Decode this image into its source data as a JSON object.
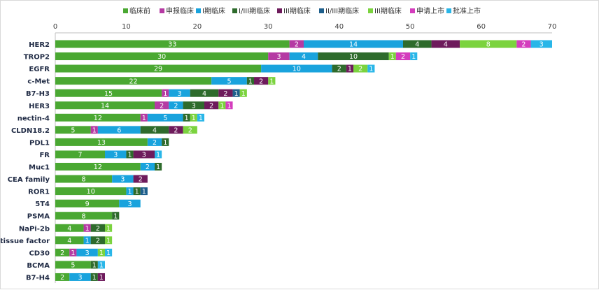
{
  "chart_data": {
    "type": "bar",
    "orientation": "horizontal",
    "stacked": true,
    "title": "",
    "xlabel": "",
    "ylabel": "",
    "xlim": [
      0,
      70
    ],
    "xticks": [
      0,
      10,
      20,
      30,
      40,
      50,
      60,
      70
    ],
    "grid": false,
    "legend_position": "top",
    "categories": [
      "HER2",
      "TROP2",
      "EGFR",
      "c-Met",
      "B7-H3",
      "HER3",
      "nectin-4",
      "CLDN18.2",
      "PDL1",
      "FR",
      "Muc1",
      "CEA family",
      "ROR1",
      "5T4",
      "PSMA",
      "NaPi-2b",
      "tissue factor",
      "CD30",
      "BCMA",
      "B7-H4"
    ],
    "series": [
      {
        "name": "临床前",
        "color": "#4aa832",
        "values": [
          33,
          30,
          29,
          22,
          15,
          14,
          12,
          5,
          13,
          7,
          12,
          8,
          10,
          9,
          8,
          4,
          4,
          2,
          5,
          2
        ]
      },
      {
        "name": "申报临床",
        "color": "#b53aa3",
        "values": [
          2,
          3,
          0,
          0,
          1,
          2,
          1,
          1,
          0,
          0,
          0,
          0,
          0,
          0,
          0,
          1,
          0,
          1,
          0,
          0
        ]
      },
      {
        "name": "I期临床",
        "color": "#19a3dd",
        "values": [
          14,
          4,
          10,
          5,
          3,
          2,
          5,
          6,
          2,
          3,
          2,
          3,
          1,
          3,
          0,
          0,
          1,
          3,
          0,
          3
        ]
      },
      {
        "name": "I/III期临床",
        "color": "#2e6b2c",
        "values": [
          4,
          10,
          2,
          1,
          4,
          3,
          1,
          4,
          1,
          1,
          1,
          0,
          1,
          0,
          1,
          2,
          2,
          0,
          1,
          1
        ]
      },
      {
        "name": "III期临床",
        "color": "#6e1b5c",
        "values": [
          4,
          0,
          1,
          2,
          2,
          2,
          0,
          2,
          0,
          3,
          0,
          2,
          0,
          0,
          0,
          0,
          0,
          0,
          0,
          1
        ]
      },
      {
        "name": "II/III期临床",
        "color": "#1e5f8c",
        "values": [
          0,
          0,
          0,
          0,
          1,
          0,
          0,
          0,
          0,
          0,
          0,
          0,
          1,
          0,
          0,
          0,
          0,
          0,
          0,
          0
        ]
      },
      {
        "name": "III期临床",
        "color": "#7bd33e",
        "values": [
          8,
          1,
          2,
          1,
          1,
          1,
          1,
          2,
          0,
          0,
          0,
          0,
          0,
          0,
          0,
          1,
          1,
          1,
          0,
          0
        ]
      },
      {
        "name": "申请上市",
        "color": "#d43dbd",
        "values": [
          2,
          2,
          0,
          0,
          0,
          1,
          0,
          0,
          0,
          0,
          0,
          0,
          0,
          0,
          0,
          0,
          0,
          0,
          0,
          0
        ]
      },
      {
        "name": "批准上市",
        "color": "#29b6e8",
        "values": [
          3,
          1,
          1,
          0,
          0,
          0,
          1,
          0,
          0,
          1,
          0,
          0,
          0,
          0,
          0,
          0,
          0,
          1,
          1,
          0
        ]
      }
    ]
  }
}
